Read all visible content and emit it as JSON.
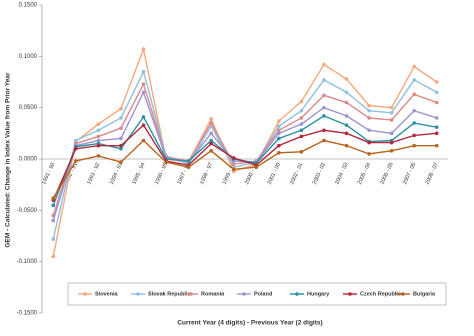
{
  "chart_data": {
    "type": "line",
    "y_label": "GEM - Calculated: Change in Index Value from Prior Year",
    "x_label": "Current Year (4 digits) - Previous Year (2 digits)",
    "categories": [
      "1991 - 90",
      "1992 - 91",
      "1993 - 92",
      "1994 - 93",
      "1995 - 94",
      "1996 - 95",
      "1997 - 96",
      "1998 - 97",
      "1999 - 98",
      "2000 - 99",
      "2001 - 00",
      "2002 - 01",
      "2003 - 02",
      "2004 - 03",
      "2005 - 04",
      "2006 - 05",
      "2007 - 06",
      "2008 - 07"
    ],
    "series": [
      {
        "name": "Slovenia",
        "color": "#f5a77a",
        "values": [
          -0.095,
          0.017,
          0.034,
          0.049,
          0.107,
          0.0,
          -0.003,
          0.039,
          -0.012,
          -0.005,
          0.037,
          0.056,
          0.092,
          0.078,
          0.052,
          0.05,
          0.09,
          0.075
        ]
      },
      {
        "name": "Slovak Republic",
        "color": "#8fc0e0",
        "values": [
          -0.078,
          0.018,
          0.028,
          0.04,
          0.085,
          0.003,
          -0.005,
          0.032,
          -0.008,
          -0.003,
          0.032,
          0.047,
          0.077,
          0.065,
          0.047,
          0.045,
          0.077,
          0.065
        ]
      },
      {
        "name": "Romania",
        "color": "#d98a8a",
        "values": [
          -0.055,
          0.015,
          0.022,
          0.03,
          0.073,
          0.002,
          -0.002,
          0.035,
          -0.005,
          -0.002,
          0.028,
          0.04,
          0.062,
          0.055,
          0.04,
          0.038,
          0.063,
          0.055
        ]
      },
      {
        "name": "Poland",
        "color": "#9d95d0",
        "values": [
          -0.06,
          0.013,
          0.018,
          0.02,
          0.065,
          0.001,
          -0.003,
          0.025,
          -0.002,
          -0.003,
          0.025,
          0.034,
          0.05,
          0.042,
          0.028,
          0.025,
          0.047,
          0.04
        ]
      },
      {
        "name": "Hungary",
        "color": "#2b8fa0",
        "values": [
          -0.045,
          0.012,
          0.015,
          0.01,
          0.041,
          0.0,
          -0.002,
          0.018,
          0.0,
          -0.004,
          0.02,
          0.028,
          0.042,
          0.033,
          0.017,
          0.018,
          0.035,
          0.031
        ]
      },
      {
        "name": "Czech Republic",
        "color": "#b0283a",
        "values": [
          -0.04,
          0.01,
          0.013,
          0.013,
          0.033,
          -0.002,
          -0.006,
          0.015,
          0.001,
          -0.006,
          0.013,
          0.022,
          0.028,
          0.025,
          0.016,
          0.016,
          0.023,
          0.025
        ]
      },
      {
        "name": "Bulgaria",
        "color": "#b8641e",
        "values": [
          -0.038,
          -0.002,
          0.003,
          -0.003,
          0.018,
          -0.003,
          -0.008,
          0.008,
          -0.01,
          -0.008,
          0.006,
          0.007,
          0.018,
          0.013,
          0.005,
          0.008,
          0.013,
          0.013
        ]
      }
    ],
    "ylim": [
      -0.15,
      0.15
    ],
    "yticks": [
      {
        "value": -0.15,
        "label": "-0.1500"
      },
      {
        "value": -0.1,
        "label": "-0.1000"
      },
      {
        "value": -0.05,
        "label": "-0.0500"
      },
      {
        "value": 0,
        "label": "0.0000"
      },
      {
        "value": 0.05,
        "label": "0.0500"
      },
      {
        "value": 0.1,
        "label": "0.1000"
      },
      {
        "value": 0.15,
        "label": "0.1500"
      }
    ],
    "legend": "bottom"
  }
}
